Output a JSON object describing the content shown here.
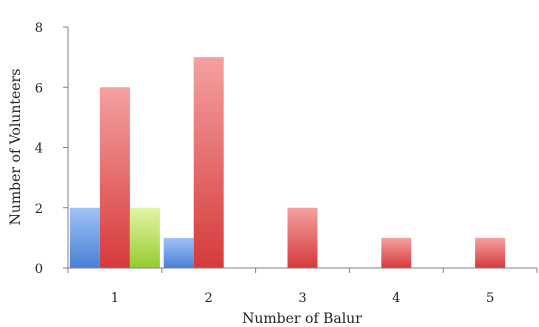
{
  "chart_data": {
    "type": "bar",
    "title": "",
    "xlabel": "Number of Balur",
    "ylabel": "Number of Volunteers",
    "categories": [
      "1",
      "2",
      "3",
      "4",
      "5"
    ],
    "ylim": [
      0,
      8
    ],
    "yticks": [
      0,
      2,
      4,
      6,
      8
    ],
    "grid": false,
    "legend": "none",
    "series": [
      {
        "color": "#5b8fe0",
        "values": [
          2,
          1,
          0,
          0,
          0
        ]
      },
      {
        "color": "#e05050",
        "values": [
          6,
          7,
          2,
          1,
          1
        ]
      },
      {
        "color": "#a8d84a",
        "values": [
          2,
          0,
          0,
          0,
          0
        ]
      }
    ]
  }
}
